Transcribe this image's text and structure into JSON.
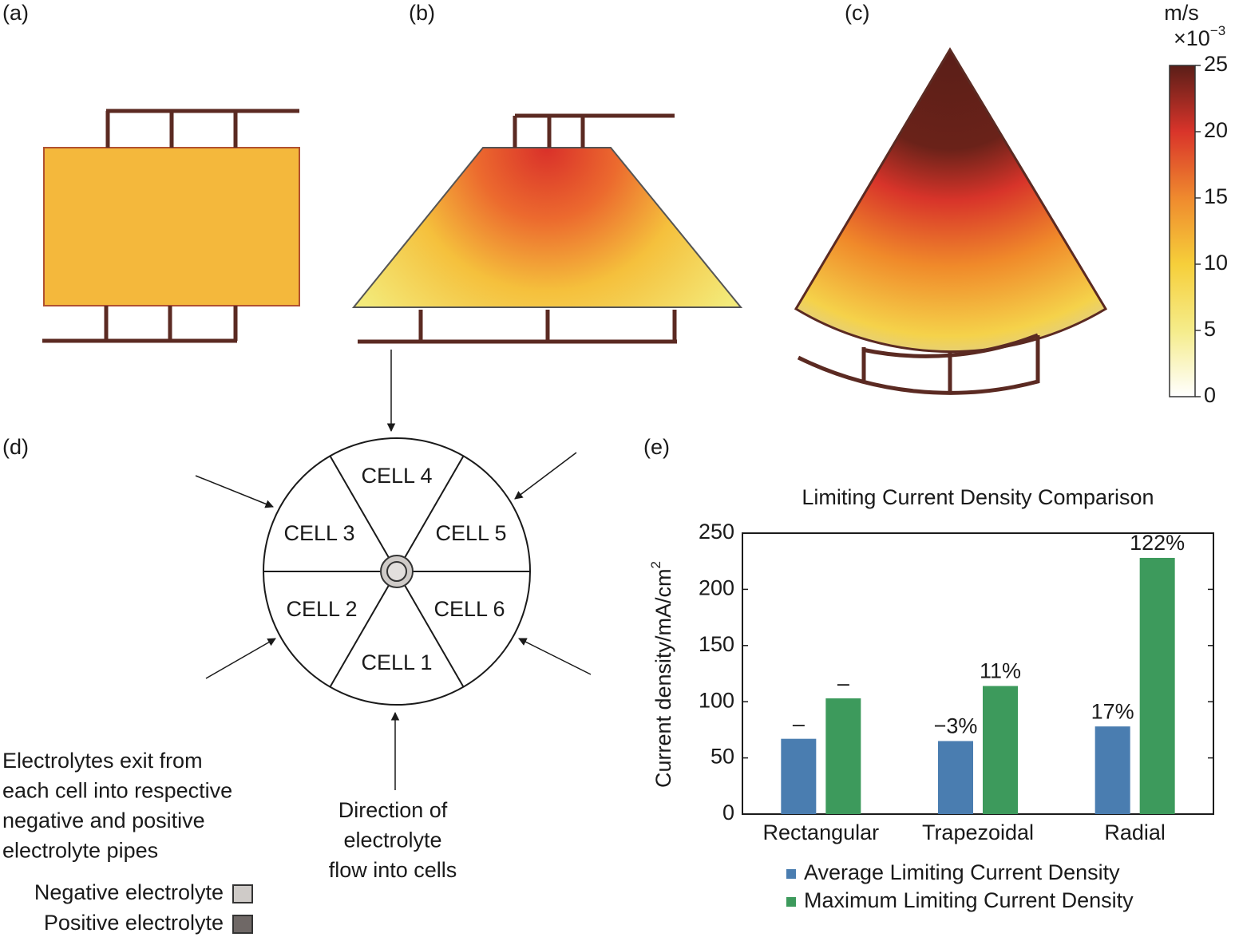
{
  "panel_labels": [
    "(a)",
    "(b)",
    "(c)",
    "(d)",
    "(e)"
  ],
  "colorbar": {
    "unit": "m/s",
    "multiplier": "×10",
    "multiplier_exponent": "−3",
    "lim": [
      0,
      25
    ],
    "ticks": [
      0,
      5,
      10,
      15,
      20,
      25
    ]
  },
  "diagram": {
    "cells": [
      "CELL 1",
      "CELL 2",
      "CELL 3",
      "CELL 4",
      "CELL 5",
      "CELL 6"
    ],
    "flow_label": [
      "Direction of",
      "electrolyte",
      "flow into cells"
    ],
    "exit_note": [
      "Electrolytes exit from",
      "each cell into respective",
      "negative and positive",
      "electrolyte pipes"
    ],
    "legend": [
      {
        "label": "Negative electrolyte",
        "color": "#cfcbc8"
      },
      {
        "label": "Positive electrolyte",
        "color": "#6f6866"
      }
    ]
  },
  "chart_data": {
    "type": "bar",
    "title": "Limiting Current Density Comparison",
    "y_label": "Current density/mA/cm",
    "y_label_superscript": "2",
    "categories": [
      "Rectangular",
      "Trapezoidal",
      "Radial"
    ],
    "series": [
      {
        "name": "Average Limiting Current Density",
        "color": "#4a7db0",
        "values": [
          67,
          65,
          78
        ],
        "change_labels": [
          "–",
          "−3%",
          "17%"
        ]
      },
      {
        "name": "Maximum Limiting Current Density",
        "color": "#3d9a5c",
        "values": [
          103,
          114,
          228
        ],
        "change_labels": [
          "–",
          "11%",
          "122%"
        ]
      }
    ],
    "ylim": [
      0,
      250
    ],
    "yticks": [
      0,
      50,
      100,
      150,
      200,
      250
    ],
    "legend": "bottom"
  }
}
